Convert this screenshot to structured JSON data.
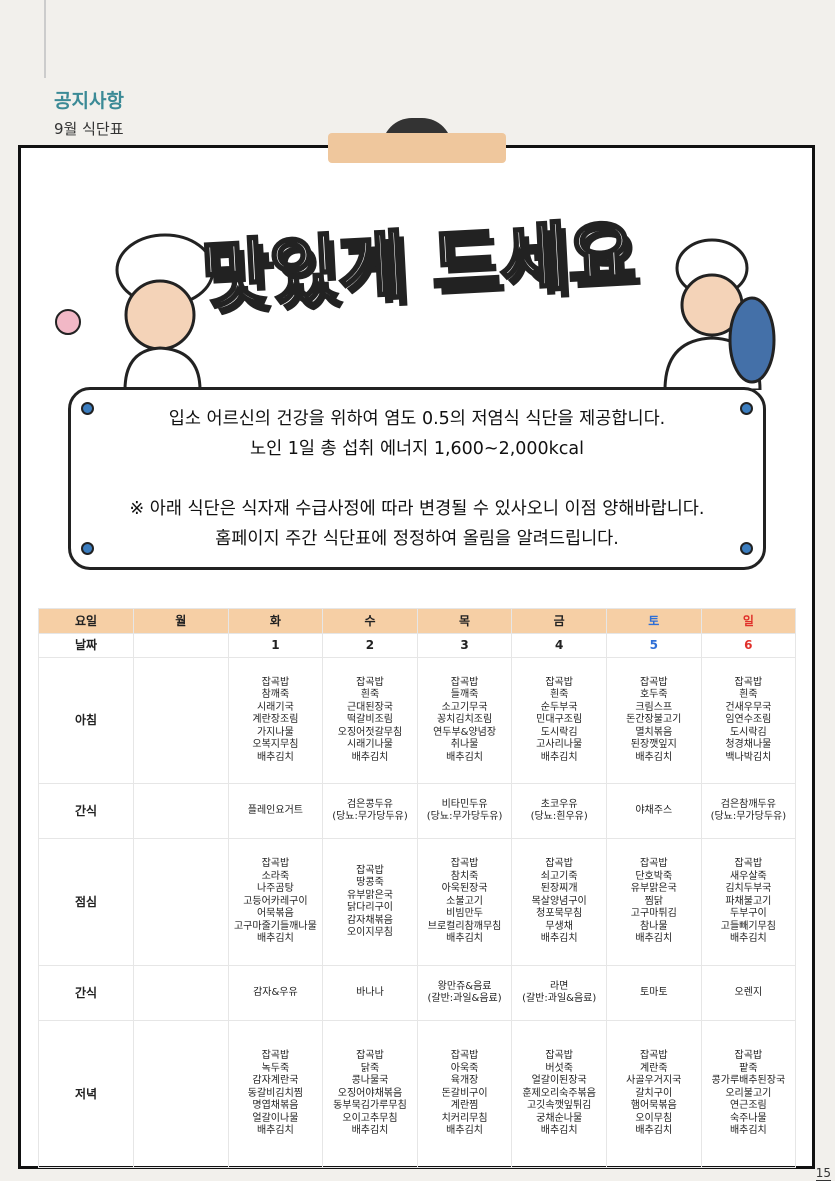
{
  "header": {
    "category": "공지사항",
    "title": "9월 식단표"
  },
  "poster": {
    "headline": "맛있게 드세요",
    "notice": [
      "입소 어르신의 건강을 위하여 염도 0.5의 저염식 식단을 제공합니다.",
      "노인 1일 총 섭취 에너지 1,600~2,000kcal",
      "※ 아래 식단은 식자재 수급사정에 따라 변경될 수 있사오니 이점 양해바랍니다.",
      "홈페이지 주간 식단표에 정정하여 올림을 알려드립니다."
    ]
  },
  "table": {
    "header": [
      "요일",
      "월",
      "화",
      "수",
      "목",
      "금",
      "토",
      "일"
    ],
    "dates": [
      "날짜",
      null,
      1,
      2,
      3,
      4,
      5,
      6
    ],
    "rows": [
      {
        "label": "아침",
        "cells": [
          null,
          [
            "잡곡밥",
            "참깨죽",
            "시래기국",
            "계란장조림",
            "가지나물",
            "오복지무침",
            "배추김치"
          ],
          [
            "잡곡밥",
            "흰죽",
            "근대된장국",
            "떡갈비조림",
            "오징어젓갈무침",
            "시래기나물",
            "배추김치"
          ],
          [
            "잡곡밥",
            "들깨죽",
            "소고기무국",
            "꽁치김치조림",
            "연두부&양념장",
            "취나물",
            "배추김치"
          ],
          [
            "잡곡밥",
            "흰죽",
            "순두부국",
            "민대구조림",
            "도시락김",
            "고사리나물",
            "배추김치"
          ],
          [
            "잡곡밥",
            "호두죽",
            "크림스프",
            "돈간장불고기",
            "멸치볶음",
            "된장깻잎지",
            "배추김치"
          ],
          [
            "잡곡밥",
            "흰죽",
            "건새우무국",
            "임연수조림",
            "도시락김",
            "청경채나물",
            "백나박김치"
          ]
        ]
      },
      {
        "label": "간식",
        "cells": [
          null,
          [
            "플레인요거트"
          ],
          [
            "검은콩두유",
            "(당뇨:무가당두유)"
          ],
          [
            "비타민두유",
            "(당뇨:무가당두유)"
          ],
          [
            "초코우유",
            "(당뇨:흰우유)"
          ],
          [
            "야채주스"
          ],
          [
            "검은참깨두유",
            "(당뇨:무가당두유)"
          ]
        ]
      },
      {
        "label": "점심",
        "cells": [
          null,
          [
            "잡곡밥",
            "소라죽",
            "나주곰탕",
            "고등어카레구이",
            "어묵볶음",
            "고구마줄기들깨나물",
            "배추김치"
          ],
          [
            "잡곡밥",
            "땅콩죽",
            "유부맑은국",
            "닭다리구이",
            "감자채볶음",
            "오이지무침"
          ],
          [
            "잡곡밥",
            "참치죽",
            "아욱된장국",
            "소불고기",
            "비빔만두",
            "브로컬리참깨무침",
            "배추김치"
          ],
          [
            "잡곡밥",
            "쇠고기죽",
            "된장찌개",
            "목살양념구이",
            "청포묵무침",
            "무생채",
            "배추김치"
          ],
          [
            "잡곡밥",
            "단호박죽",
            "유부맑은국",
            "찜닭",
            "고구마튀김",
            "참나물",
            "배추김치"
          ],
          [
            "잡곡밥",
            "새우살죽",
            "김치두부국",
            "파채불고기",
            "두부구이",
            "고들빼기무침",
            "배추김치"
          ]
        ]
      },
      {
        "label": "간식",
        "cells": [
          null,
          [
            "감자&우유"
          ],
          [
            "바나나"
          ],
          [
            "왕만쥬&음료",
            "(갈반:과일&음료)"
          ],
          [
            "라면",
            "(갈반:과일&음료)"
          ],
          [
            "토마토"
          ],
          [
            "오렌지"
          ]
        ]
      },
      {
        "label": "저녁",
        "cells": [
          null,
          [
            "잡곡밥",
            "녹두죽",
            "감자계란국",
            "동갈비김치찜",
            "명엽채볶음",
            "얼갈이나물",
            "배추김치"
          ],
          [
            "잡곡밥",
            "닭죽",
            "콩나물국",
            "오징어야채볶음",
            "동부묵김가루무침",
            "오이고추무침",
            "배추김치"
          ],
          [
            "잡곡밥",
            "아욱죽",
            "육개장",
            "돈갈비구이",
            "계란찜",
            "치커리무침",
            "배추김치"
          ],
          [
            "잡곡밥",
            "버섯죽",
            "얼갈이된장국",
            "훈제오리숙주볶음",
            "고깃속깻잎튀김",
            "궁채순나물",
            "배추김치"
          ],
          [
            "잡곡밥",
            "계란죽",
            "사골우거지국",
            "갈치구이",
            "햄어묵볶음",
            "오이무침",
            "배추김치"
          ],
          [
            "잡곡밥",
            "팥죽",
            "콩가루배추된장국",
            "오리불고기",
            "연근조림",
            "숙주나물",
            "배추김치"
          ]
        ]
      }
    ]
  },
  "footer": {
    "page": 15
  }
}
